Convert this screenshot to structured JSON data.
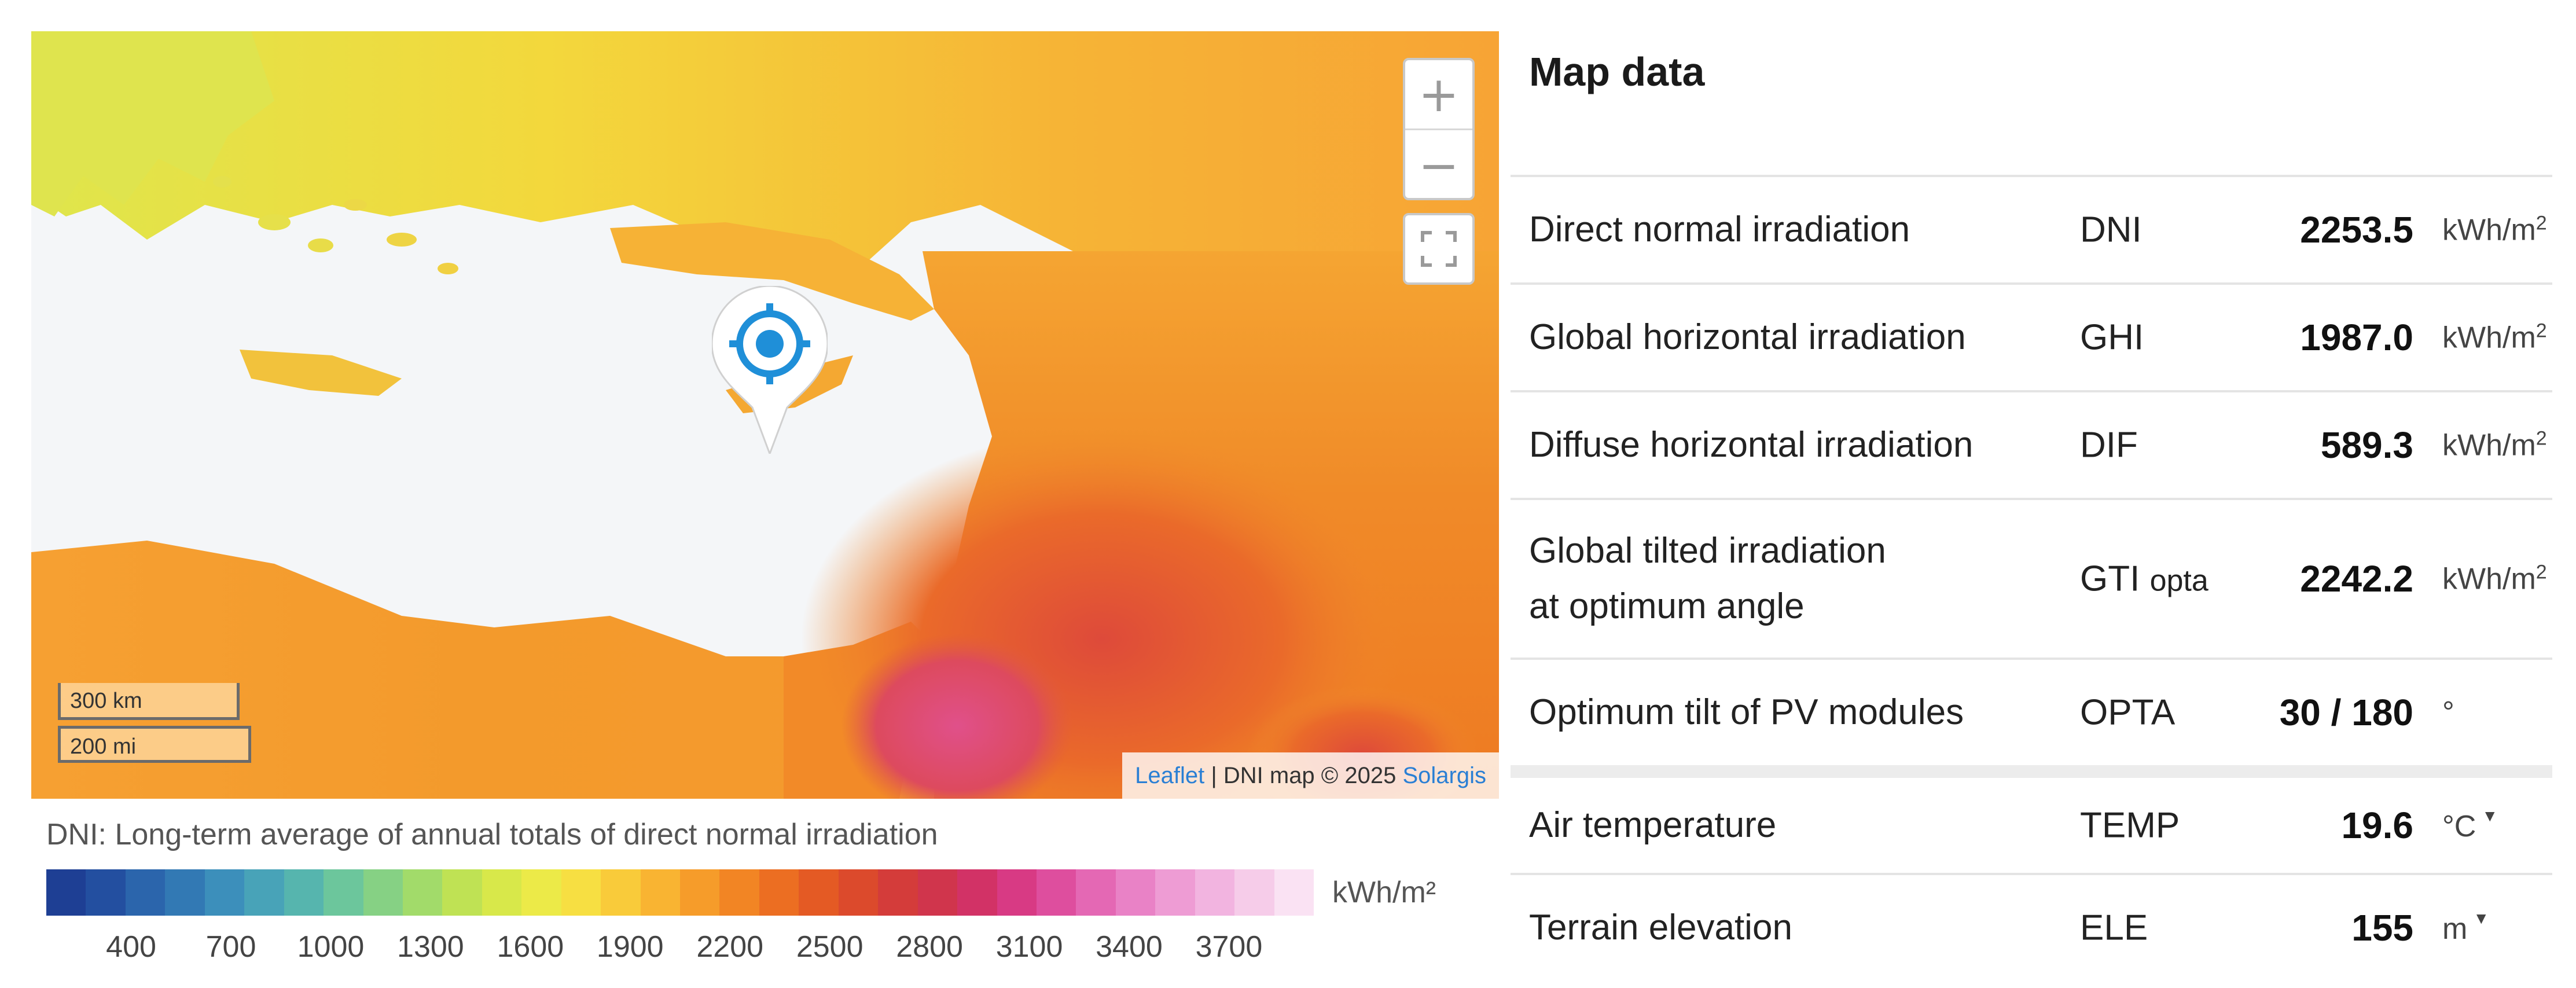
{
  "map": {
    "zoom_in": "+",
    "zoom_out": "−",
    "scale_km": "300 km",
    "scale_mi": "200 mi",
    "attribution_leaflet": "Leaflet",
    "attribution_sep": " | DNI map © 2025 ",
    "attribution_solargis": "Solargis",
    "marker_icon": "crosshair-target-icon"
  },
  "legend": {
    "title": "DNI: Long-term average of annual totals of direct normal irradiation",
    "unit": "kWh/m²",
    "ticks": [
      "400",
      "700",
      "1000",
      "1300",
      "1600",
      "1900",
      "2200",
      "2500",
      "2800",
      "3100",
      "3400",
      "3700"
    ],
    "colors": [
      "#1e3f94",
      "#234fa0",
      "#2b65ac",
      "#3279b4",
      "#3c8fbb",
      "#48a3b8",
      "#56b5ae",
      "#6cc69c",
      "#86d184",
      "#a2db6a",
      "#bfe254",
      "#d8e84a",
      "#ecea48",
      "#f7df42",
      "#f9cb3a",
      "#f9b432",
      "#f69c2a",
      "#f28524",
      "#ec6e22",
      "#e45a24",
      "#dc4a2c",
      "#d43c3a",
      "#d0354c",
      "#d23266",
      "#d83a84",
      "#de4e9e",
      "#e468b4",
      "#e982c6",
      "#ee9cd4",
      "#f2b4e0",
      "#f6cce9",
      "#fae2f3"
    ]
  },
  "panel": {
    "title": "Map data",
    "rows": [
      {
        "label": "Direct normal irradiation",
        "abbr": "DNI",
        "abbr_sub": "",
        "value": "2253.5",
        "unit": "kWh/m",
        "unit_sup": "2",
        "caret": ""
      },
      {
        "label": "Global horizontal irradiation",
        "abbr": "GHI",
        "abbr_sub": "",
        "value": "1987.0",
        "unit": "kWh/m",
        "unit_sup": "2",
        "caret": ""
      },
      {
        "label": "Diffuse horizontal irradiation",
        "abbr": "DIF",
        "abbr_sub": "",
        "value": "589.3",
        "unit": "kWh/m",
        "unit_sup": "2",
        "caret": ""
      },
      {
        "label": "Global tilted irradiation at optimum angle",
        "abbr": "GTI",
        "abbr_sub": "opta",
        "value": "2242.2",
        "unit": "kWh/m",
        "unit_sup": "2",
        "caret": ""
      },
      {
        "label": "Optimum tilt of PV modules",
        "abbr": "OPTA",
        "abbr_sub": "",
        "value": "30 / 180",
        "unit": "°",
        "unit_sup": "",
        "caret": ""
      },
      {
        "label": "Air temperature",
        "abbr": "TEMP",
        "abbr_sub": "",
        "value": "19.6",
        "unit": "°C",
        "unit_sup": "",
        "caret": "▼"
      },
      {
        "label": "Terrain elevation",
        "abbr": "ELE",
        "abbr_sub": "",
        "value": "155",
        "unit": "m",
        "unit_sup": "",
        "caret": "▼"
      }
    ]
  }
}
